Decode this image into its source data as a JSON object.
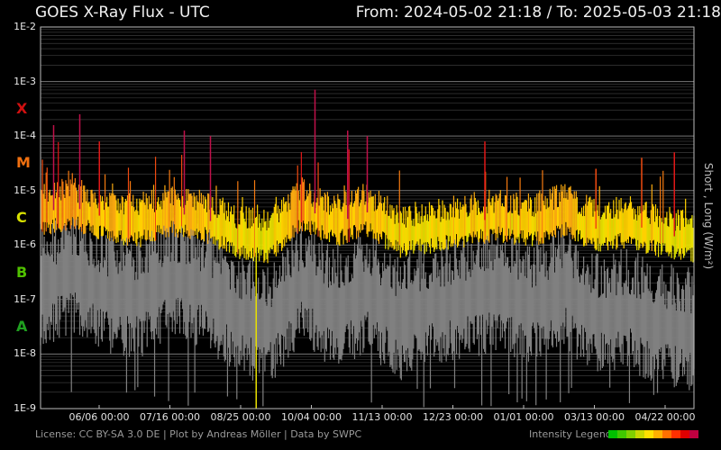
{
  "header": {
    "title": "GOES X-Ray Flux - UTC",
    "range": "From: 2024-05-02 21:18  /  To: 2025-05-03 21:18"
  },
  "footer": {
    "credits": "License: CC BY-SA 3.0 DE | Plot by Andreas Möller | Data by SWPC",
    "legend_label": "Intensity Legend",
    "legend_colors": [
      "#00c000",
      "#40c800",
      "#80d000",
      "#c8d800",
      "#ffe000",
      "#ffb000",
      "#ff7000",
      "#ff3000",
      "#e00000",
      "#c00040"
    ]
  },
  "chart_data": {
    "type": "line",
    "title": "GOES X-Ray Flux - UTC",
    "ylabel": "Short , Long (W/m²)",
    "yscale": "log",
    "ylim": [
      1e-09,
      0.01
    ],
    "y_tick_labels": [
      "1E-2",
      "1E-3",
      "1E-4",
      "1E-5",
      "1E-6",
      "1E-7",
      "1E-8",
      "1E-9"
    ],
    "x_tick_labels": [
      "06/06 00:00",
      "07/16 00:00",
      "08/25 00:00",
      "10/04 00:00",
      "11/13 00:00",
      "12/23 00:00",
      "01/01 00:00",
      "03/13 00:00",
      "04/22 00:00"
    ],
    "flare_classes": [
      {
        "label": "X",
        "color": "#d01010"
      },
      {
        "label": "M",
        "color": "#f07010"
      },
      {
        "label": "C",
        "color": "#d8e000"
      },
      {
        "label": "B",
        "color": "#50c000"
      },
      {
        "label": "A",
        "color": "#20a020"
      }
    ],
    "series": [
      {
        "name": "Long",
        "color_scale": "intensity",
        "approx_log10_profile": [
          [
            0,
            -5.4
          ],
          [
            0.05,
            -5.3
          ],
          [
            0.1,
            -5.5
          ],
          [
            0.15,
            -5.6
          ],
          [
            0.2,
            -5.4
          ],
          [
            0.25,
            -5.5
          ],
          [
            0.3,
            -5.8
          ],
          [
            0.35,
            -5.9
          ],
          [
            0.4,
            -5.3
          ],
          [
            0.45,
            -5.6
          ],
          [
            0.5,
            -5.4
          ],
          [
            0.55,
            -5.8
          ],
          [
            0.6,
            -5.7
          ],
          [
            0.65,
            -5.6
          ],
          [
            0.7,
            -5.5
          ],
          [
            0.75,
            -5.6
          ],
          [
            0.8,
            -5.4
          ],
          [
            0.85,
            -5.7
          ],
          [
            0.9,
            -5.6
          ],
          [
            0.95,
            -5.8
          ],
          [
            1.0,
            -5.9
          ]
        ]
      },
      {
        "name": "Short",
        "color": "#808080",
        "approx_log10_profile": [
          [
            0,
            -6.8
          ],
          [
            0.05,
            -6.5
          ],
          [
            0.1,
            -6.9
          ],
          [
            0.15,
            -7.0
          ],
          [
            0.2,
            -6.6
          ],
          [
            0.25,
            -6.8
          ],
          [
            0.3,
            -7.3
          ],
          [
            0.35,
            -7.5
          ],
          [
            0.4,
            -6.7
          ],
          [
            0.45,
            -7.2
          ],
          [
            0.5,
            -6.9
          ],
          [
            0.55,
            -7.4
          ],
          [
            0.6,
            -7.1
          ],
          [
            0.65,
            -7.0
          ],
          [
            0.7,
            -6.9
          ],
          [
            0.75,
            -7.1
          ],
          [
            0.8,
            -6.8
          ],
          [
            0.85,
            -7.3
          ],
          [
            0.9,
            -7.2
          ],
          [
            0.95,
            -7.5
          ],
          [
            1.0,
            -7.6
          ]
        ]
      }
    ],
    "notable_peaks_log10": [
      [
        0.02,
        -3.8
      ],
      [
        0.06,
        -3.6
      ],
      [
        0.09,
        -4.1
      ],
      [
        0.22,
        -3.9
      ],
      [
        0.26,
        -4.0
      ],
      [
        0.42,
        -3.15
      ],
      [
        0.47,
        -3.9
      ],
      [
        0.5,
        -4.0
      ],
      [
        0.68,
        -4.1
      ],
      [
        0.85,
        -4.6
      ],
      [
        0.92,
        -4.4
      ],
      [
        0.97,
        -4.3
      ]
    ],
    "grid": true
  }
}
